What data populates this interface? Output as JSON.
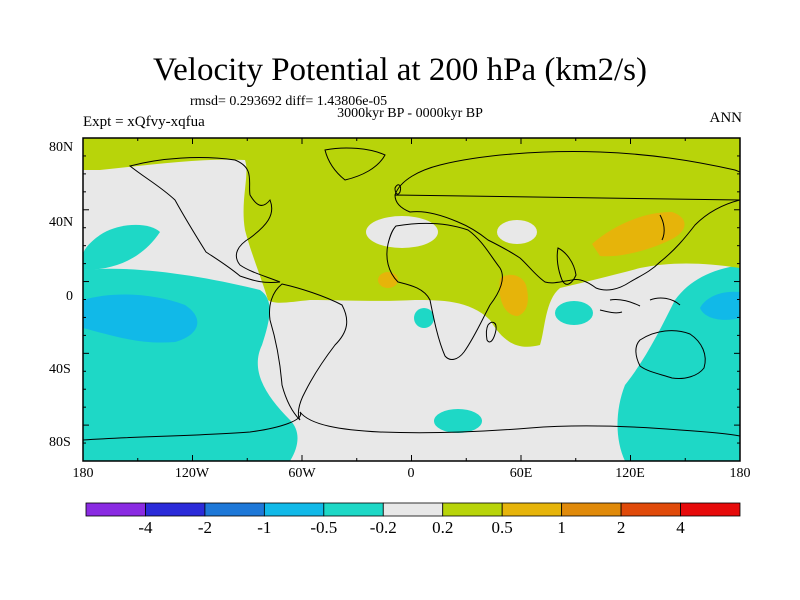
{
  "title": "Velocity Potential at 200 hPa (km2/s)",
  "stats": "rmsd= 0.293692 diff= 1.43806e-05",
  "period": "3000kyr BP - 0000kyr BP",
  "experiment": "Expt = xQfvy-xqfua",
  "season": "ANN",
  "axes": {
    "x_ticks": [
      "180",
      "120W",
      "60W",
      "0",
      "60E",
      "120E",
      "180"
    ],
    "y_ticks": [
      "80N",
      "40N",
      "0",
      "40S",
      "80S"
    ]
  },
  "colorbar": {
    "colors": [
      "#8a2be2",
      "#2b2bd9",
      "#1e78d8",
      "#11b9e8",
      "#1ed8c6",
      "#e8e8e8",
      "#b8d40a",
      "#e6b40a",
      "#e08a0a",
      "#e04a0a",
      "#e60a0a"
    ],
    "labels": [
      "-4",
      "-2",
      "-1",
      "-0.5",
      "-0.2",
      "0.2",
      "0.5",
      "1",
      "2",
      "4"
    ]
  },
  "palette": {
    "positive": "#b8d40a",
    "strong_positive": "#e6b40a",
    "neutral": "#e8e8e8",
    "negative": "#1ed8c6",
    "strong_negative": "#11b9e8"
  }
}
